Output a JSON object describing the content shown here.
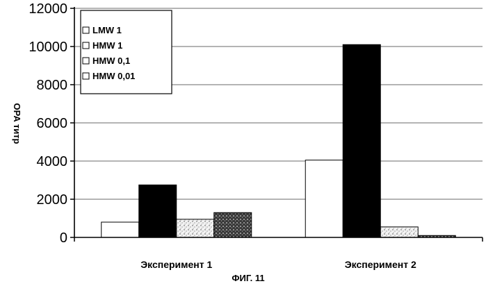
{
  "chart_data": {
    "type": "bar",
    "categories": [
      "Эксперимент 1",
      "Эксперимент 2"
    ],
    "series": [
      {
        "name": "LMW 1",
        "values": [
          800,
          4050
        ],
        "pattern": "white"
      },
      {
        "name": "HMW 1",
        "values": [
          2750,
          10100
        ],
        "pattern": "black"
      },
      {
        "name": "HMW 0,1",
        "values": [
          950,
          550
        ],
        "pattern": "light-speckle"
      },
      {
        "name": "HMW 0,01",
        "values": [
          1300,
          100
        ],
        "pattern": "dark-speckle"
      }
    ],
    "title": "",
    "xlabel": "",
    "ylabel": "OPA титр",
    "ylim": [
      0,
      12000
    ],
    "yticks": [
      0,
      2000,
      4000,
      6000,
      8000,
      10000,
      12000
    ],
    "grid": true,
    "legend_position": "top-left"
  },
  "caption": "ФИГ. 11"
}
